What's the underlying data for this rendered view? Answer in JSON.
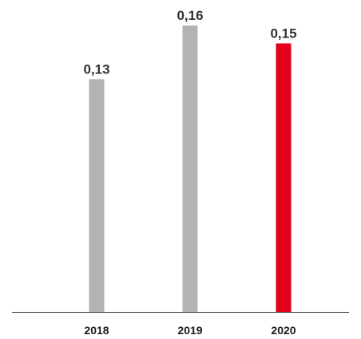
{
  "chart_data": {
    "type": "bar",
    "title": "",
    "xlabel": "",
    "ylabel": "",
    "categories": [
      "2018",
      "2019",
      "2020"
    ],
    "values": [
      0.13,
      0.16,
      0.15
    ],
    "value_labels": [
      "0,13",
      "0,16",
      "0,15"
    ],
    "ylim": [
      0,
      0.16
    ],
    "grid": false,
    "legend": "none",
    "colors": {
      "default_bar": "#b3b3b3",
      "highlight_bar": "#e2001a",
      "axis": "#333333",
      "value_text": "#333333",
      "tick_text": "#1a1a1a"
    },
    "highlight_index": 2
  }
}
